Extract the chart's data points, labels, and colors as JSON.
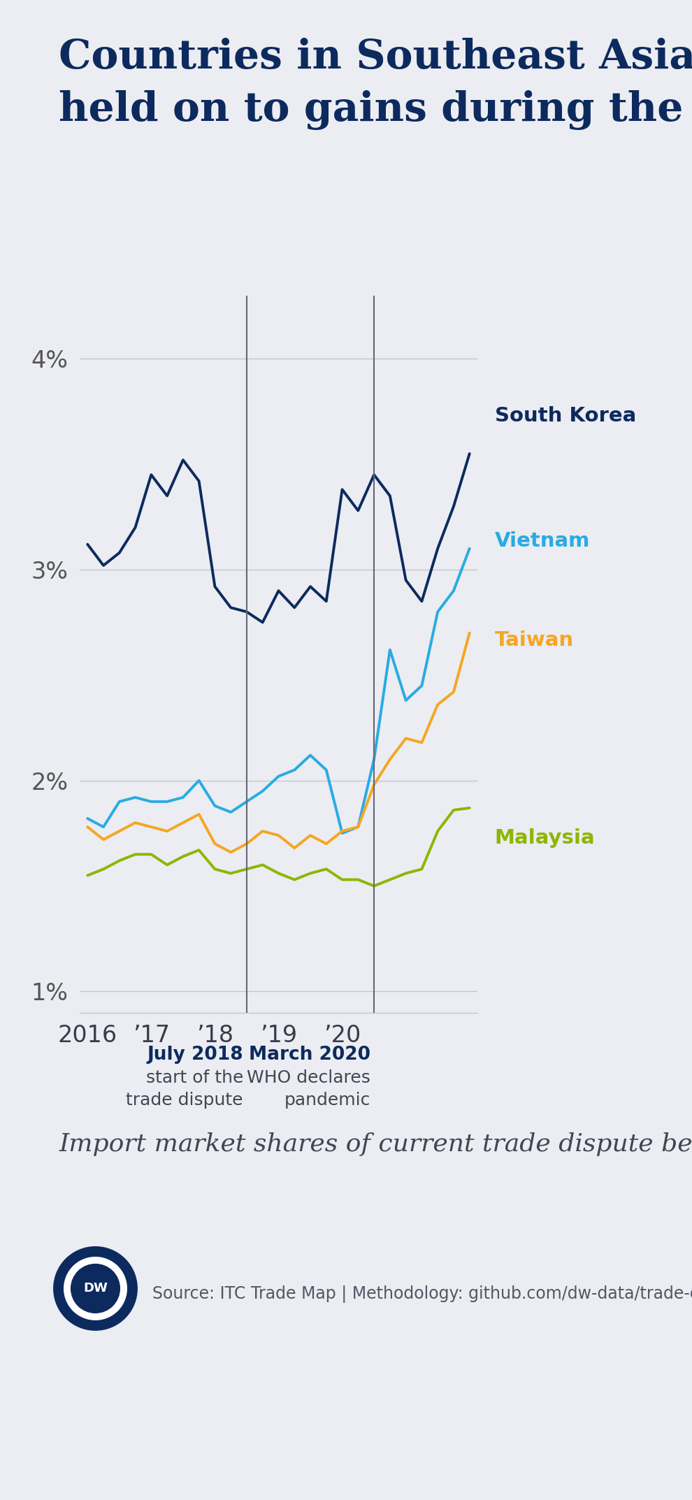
{
  "title_line1": "Countries in Southeast Asia have",
  "title_line2": "held on to gains during the pandemic",
  "subtitle": "Import market shares of current trade dispute beneficiaries",
  "source": "Source: ITC Trade Map | Methodology: github.com/dw-data/trade-dispute",
  "background_color": "#ebedf2",
  "title_color": "#0d2a5e",
  "tick_color": "#555555",
  "annotation_bold_color": "#0d2a5e",
  "annotation_color": "#444455",
  "grid_color": "#c5c6cc",
  "vline_color": "#666677",
  "ylim_low": 0.009,
  "ylim_high": 0.043,
  "yticks": [
    0.01,
    0.02,
    0.03,
    0.04
  ],
  "ytick_labels": [
    "1%",
    "2%",
    "3%",
    "4%"
  ],
  "vline1_x": 10,
  "vline2_x": 18,
  "vline1_label_bold": "July 2018",
  "vline1_label_rest": "start of the\ntrade dispute",
  "vline2_label_bold": "March 2020",
  "vline2_label_rest": "WHO declares\npandemic",
  "xtick_positions": [
    0,
    4,
    8,
    12,
    16,
    20
  ],
  "xtick_labels": [
    "2016",
    "’17",
    "’18",
    "’19",
    "’20",
    ""
  ],
  "south_korea": {
    "label": "South Korea",
    "color": "#0d2a5e",
    "linewidth": 2.8,
    "values": [
      3.12,
      3.02,
      3.08,
      3.2,
      3.45,
      3.35,
      3.52,
      3.42,
      2.92,
      2.82,
      2.8,
      2.75,
      2.9,
      2.82,
      2.92,
      2.85,
      3.38,
      3.28,
      3.45,
      3.35,
      2.95,
      2.85,
      3.1,
      3.3,
      3.55
    ]
  },
  "vietnam": {
    "label": "Vietnam",
    "color": "#29abe2",
    "linewidth": 2.8,
    "values": [
      1.82,
      1.78,
      1.9,
      1.92,
      1.9,
      1.9,
      1.92,
      2.0,
      1.88,
      1.85,
      1.9,
      1.95,
      2.02,
      2.05,
      2.12,
      2.05,
      1.75,
      1.78,
      2.1,
      2.62,
      2.38,
      2.45,
      2.8,
      2.9,
      3.1
    ]
  },
  "taiwan": {
    "label": "Taiwan",
    "color": "#f5a623",
    "linewidth": 2.8,
    "values": [
      1.78,
      1.72,
      1.76,
      1.8,
      1.78,
      1.76,
      1.8,
      1.84,
      1.7,
      1.66,
      1.7,
      1.76,
      1.74,
      1.68,
      1.74,
      1.7,
      1.76,
      1.78,
      1.98,
      2.1,
      2.2,
      2.18,
      2.36,
      2.42,
      2.7
    ]
  },
  "malaysia": {
    "label": "Malaysia",
    "color": "#8db600",
    "linewidth": 2.8,
    "values": [
      1.55,
      1.58,
      1.62,
      1.65,
      1.65,
      1.6,
      1.64,
      1.67,
      1.58,
      1.56,
      1.58,
      1.6,
      1.56,
      1.53,
      1.56,
      1.58,
      1.53,
      1.53,
      1.5,
      1.53,
      1.56,
      1.58,
      1.76,
      1.86,
      1.87
    ]
  }
}
